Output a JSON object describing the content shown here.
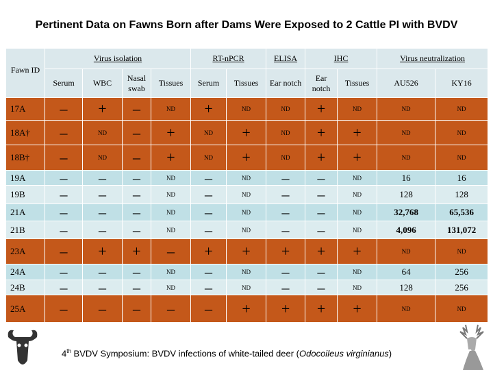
{
  "title": "Pertinent Data on Fawns Born after Dams Were Exposed to 2 Cattle PI with BVDV",
  "table": {
    "groups": [
      "Fawn ID",
      "Virus isolation",
      "RT-nPCR",
      "ELISA",
      "IHC",
      "Virus neutralization"
    ],
    "columns": [
      "Serum",
      "WBC",
      "Nasal swab",
      "Tissues",
      "Serum",
      "Tissues",
      "Ear notch",
      "Ear notch",
      "Tissues",
      "AU526",
      "KY16"
    ],
    "rows": [
      [
        "17A",
        "–",
        "+",
        "–",
        "ND",
        "+",
        "ND",
        "ND",
        "+",
        "ND",
        "ND",
        "ND"
      ],
      [
        "18A†",
        "–",
        "ND",
        "–",
        "+",
        "ND",
        "+",
        "ND",
        "+",
        "+",
        "ND",
        "ND"
      ],
      [
        "18B†",
        "–",
        "ND",
        "–",
        "+",
        "ND",
        "+",
        "ND",
        "+",
        "+",
        "ND",
        "ND"
      ],
      [
        "19A",
        "–",
        "–",
        "–",
        "ND",
        "–",
        "ND",
        "–",
        "–",
        "ND",
        "16",
        "16"
      ],
      [
        "19B",
        "–",
        "–",
        "–",
        "ND",
        "–",
        "ND",
        "–",
        "–",
        "ND",
        "128",
        "128"
      ],
      [
        "21A",
        "–",
        "–",
        "–",
        "ND",
        "–",
        "ND",
        "–",
        "–",
        "ND",
        "32,768",
        "65,536"
      ],
      [
        "21B",
        "–",
        "–",
        "–",
        "ND",
        "–",
        "ND",
        "–",
        "–",
        "ND",
        "4,096",
        "131,072"
      ],
      [
        "23A",
        "–",
        "+",
        "+",
        "–",
        "+",
        "+",
        "+",
        "+",
        "+",
        "ND",
        "ND"
      ],
      [
        "24A",
        "–",
        "–",
        "–",
        "ND",
        "–",
        "ND",
        "–",
        "–",
        "ND",
        "64",
        "256"
      ],
      [
        "24B",
        "–",
        "–",
        "–",
        "ND",
        "–",
        "ND",
        "–",
        "–",
        "ND",
        "128",
        "256"
      ],
      [
        "25A",
        "–",
        "–",
        "–",
        "–",
        "–",
        "+",
        "+",
        "+",
        "+",
        "ND",
        "ND"
      ]
    ]
  },
  "footer": [
    "4",
    "th",
    " BVDV Symposium:  BVDV infections of white-tailed deer (",
    "Odocoileus virginianus",
    ")"
  ]
}
